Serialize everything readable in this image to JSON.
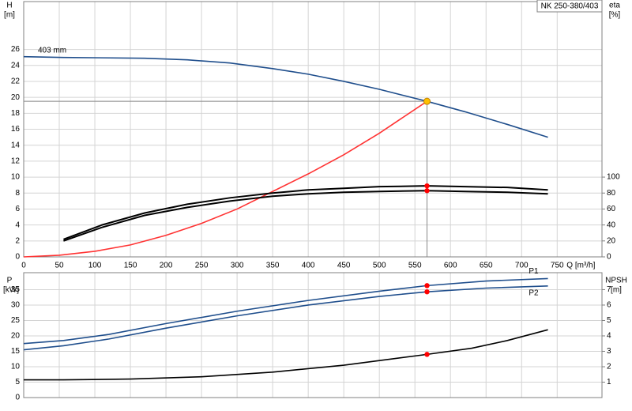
{
  "chart_data": [
    {
      "type": "line",
      "title": "NK 250-380/403",
      "y_label": "H",
      "y_unit": "[m]",
      "y2_label": "eta",
      "y2_unit": "[%]",
      "x_label": "Q [m³/h]",
      "xlim": [
        0,
        813
      ],
      "xticks": [
        0,
        50,
        100,
        150,
        200,
        250,
        300,
        350,
        400,
        450,
        500,
        550,
        600,
        650,
        700,
        750
      ],
      "ylim": [
        0,
        32
      ],
      "yticks": [
        0,
        2,
        4,
        6,
        8,
        10,
        12,
        14,
        16,
        18,
        20,
        22,
        24,
        26
      ],
      "y2lim": [
        0,
        320
      ],
      "y2ticks": [
        0,
        20,
        40,
        60,
        80,
        100
      ],
      "grid": true,
      "operating_point": {
        "x": 567,
        "y": 19.5,
        "color": "#ffc000"
      },
      "point_color": "#ff0000",
      "series": [
        {
          "name": "403 mm",
          "color": "#1f4e8c",
          "x": [
            0,
            56,
            170,
            230,
            290,
            350,
            400,
            450,
            500,
            567,
            620,
            680,
            737
          ],
          "values": [
            25.1,
            25.0,
            24.9,
            24.7,
            24.3,
            23.6,
            22.9,
            22.0,
            21.0,
            19.5,
            18.2,
            16.6,
            15.0
          ]
        },
        {
          "color": "#ff3333",
          "x": [
            0,
            50,
            100,
            150,
            200,
            250,
            300,
            350,
            400,
            450,
            500,
            567
          ],
          "values": [
            0,
            0.2,
            0.7,
            1.5,
            2.7,
            4.2,
            6.0,
            8.2,
            10.4,
            12.8,
            15.5,
            19.5
          ]
        },
        {
          "color": "#000000",
          "axis": "y2",
          "x": [
            56,
            110,
            170,
            230,
            290,
            350,
            400,
            450,
            500,
            567,
            620,
            680,
            737
          ],
          "values": [
            22,
            40,
            55,
            66,
            74,
            80,
            84,
            86,
            88,
            89,
            88,
            87,
            84
          ]
        },
        {
          "color": "#000000",
          "axis": "y2",
          "x": [
            56,
            110,
            170,
            230,
            290,
            350,
            400,
            450,
            500,
            567,
            620,
            680,
            737
          ],
          "values": [
            20,
            37,
            52,
            62,
            70,
            76,
            79,
            81,
            82,
            83,
            82,
            81,
            79
          ]
        }
      ]
    },
    {
      "type": "line",
      "y_label": "P",
      "y_unit": "[kW]",
      "y2_label": "NPSH",
      "y2_unit": "[m]",
      "xlim": [
        0,
        813
      ],
      "xticks": [
        0,
        50,
        100,
        150,
        200,
        250,
        300,
        350,
        400,
        450,
        500,
        550,
        600,
        650,
        700,
        750
      ],
      "ylim": [
        0,
        40.5
      ],
      "yticks": [
        0,
        5,
        10,
        15,
        20,
        25,
        30,
        35
      ],
      "y2lim": [
        0,
        8.1
      ],
      "y2ticks": [
        1,
        2,
        3,
        4,
        5,
        6,
        7
      ],
      "grid": true,
      "operating_point": {
        "x": 567
      },
      "point_color": "#ff0000",
      "series": [
        {
          "name": "P1",
          "color": "#1f4e8c",
          "x": [
            0,
            56,
            120,
            200,
            300,
            400,
            500,
            567,
            650,
            737
          ],
          "values": [
            17.5,
            18.5,
            20.5,
            24,
            28,
            31.5,
            34.5,
            36.3,
            37.8,
            38.6
          ]
        },
        {
          "name": "P2",
          "color": "#1f4e8c",
          "x": [
            0,
            56,
            120,
            200,
            300,
            400,
            500,
            567,
            650,
            737
          ],
          "values": [
            15.5,
            16.8,
            19,
            22.5,
            26.5,
            30,
            32.8,
            34.3,
            35.5,
            36.2
          ]
        },
        {
          "color": "#000000",
          "axis": "y2",
          "x": [
            0,
            56,
            150,
            250,
            350,
            450,
            500,
            567,
            630,
            680,
            737
          ],
          "values": [
            1.15,
            1.15,
            1.2,
            1.35,
            1.65,
            2.1,
            2.4,
            2.8,
            3.2,
            3.7,
            4.4
          ]
        }
      ]
    }
  ]
}
